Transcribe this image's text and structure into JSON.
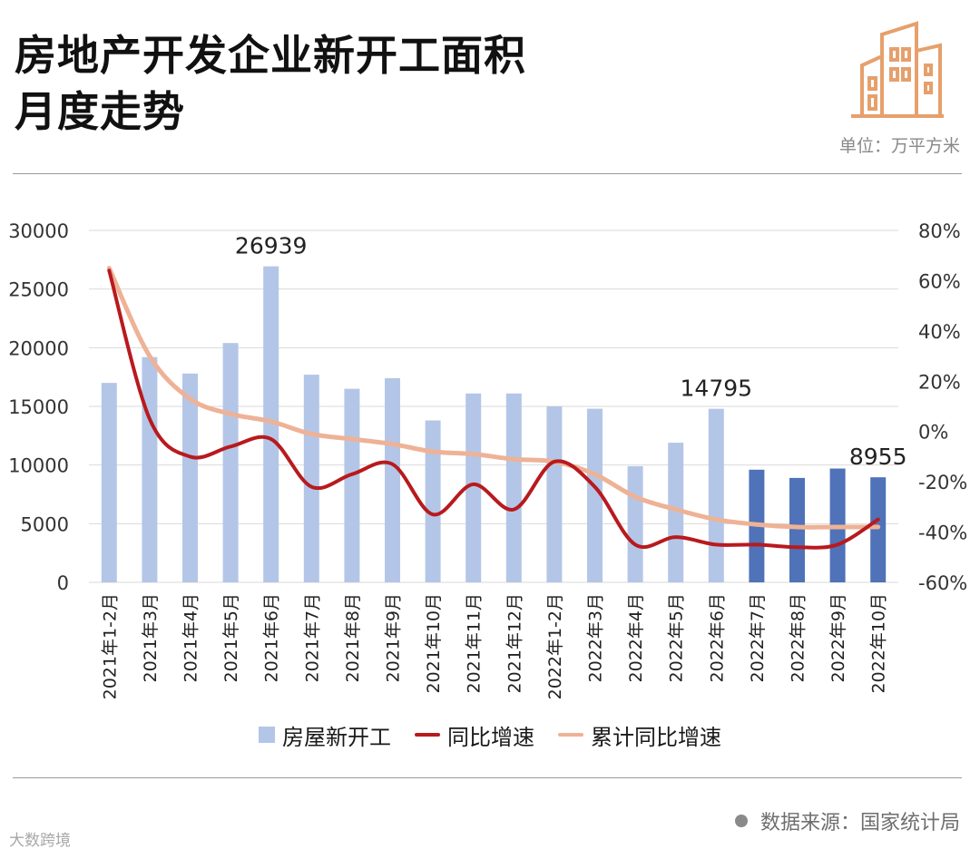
{
  "header": {
    "title_line1": "房地产开发企业新开工面积",
    "title_line2": "月度走势",
    "unit": "单位：万平方米"
  },
  "legend": {
    "bar_label": "房屋新开工",
    "yoy_label": "同比增速",
    "cum_label": "累计同比增速"
  },
  "footer": {
    "source": "数据来源：国家统计局",
    "watermark": "大数跨境"
  },
  "colors": {
    "bar_light": "#b4c6e7",
    "bar_dark": "#4f72b8",
    "yoy_line": "#b81a1e",
    "cum_line": "#eeb296",
    "grid": "#d9d9d9",
    "logo": "#e6a06c"
  },
  "chart_data": {
    "type": "bar",
    "categories": [
      "2021年1-2月",
      "2021年3月",
      "2021年4月",
      "2021年5月",
      "2021年6月",
      "2021年7月",
      "2021年8月",
      "2021年9月",
      "2021年10月",
      "2021年11月",
      "2021年12月",
      "2022年1-2月",
      "2022年3月",
      "2022年4月",
      "2022年5月",
      "2022年6月",
      "2022年7月",
      "2022年8月",
      "2022年9月",
      "2022年10月"
    ],
    "series": [
      {
        "name": "房屋新开工",
        "type": "bar",
        "axis": "left",
        "values": [
          17000,
          19200,
          17800,
          20400,
          26939,
          17700,
          16500,
          17400,
          13800,
          16100,
          16100,
          15000,
          14800,
          9900,
          11900,
          14795,
          9600,
          8900,
          9700,
          8955
        ],
        "highlight_from_index": 16
      },
      {
        "name": "同比增速",
        "type": "line",
        "axis": "right",
        "unit": "%",
        "values": [
          64,
          5,
          -10,
          -6,
          -3,
          -22,
          -17,
          -13,
          -33,
          -21,
          -31,
          -12,
          -22,
          -45,
          -42,
          -45,
          -45,
          -46,
          -45,
          -35
        ]
      },
      {
        "name": "累计同比增速",
        "type": "line",
        "axis": "right",
        "unit": "%",
        "values": [
          65,
          30,
          13,
          7,
          4,
          -1,
          -3,
          -5,
          -8,
          -9,
          -11,
          -12,
          -17,
          -26,
          -31,
          -35,
          -37,
          -38,
          -38,
          -38
        ]
      }
    ],
    "data_labels": [
      {
        "index": 4,
        "text": "26939"
      },
      {
        "index": 15,
        "text": "14795"
      },
      {
        "index": 19,
        "text": "8955"
      }
    ],
    "y_left": {
      "min": 0,
      "max": 30000,
      "ticks": [
        "0",
        "5000",
        "10000",
        "15000",
        "20000",
        "25000",
        "30000"
      ]
    },
    "y_right": {
      "min": -60,
      "max": 80,
      "ticks": [
        "-60%",
        "-40%",
        "-20%",
        "0%",
        "20%",
        "40%",
        "60%",
        "80%"
      ]
    },
    "grid": true,
    "legend_position": "bottom"
  }
}
